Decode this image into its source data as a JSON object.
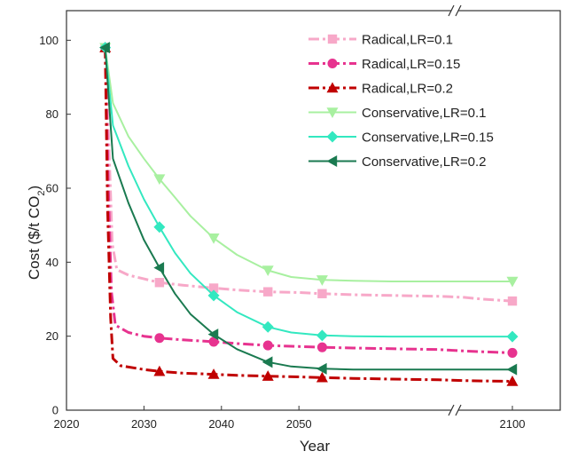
{
  "chart_data": {
    "type": "line",
    "title": "",
    "xlabel": "Year",
    "ylabel": "Cost ($/t CO",
    "ylabel_sub": "2",
    "ylabel_end": ")",
    "xlim": [
      2020,
      2103
    ],
    "ylim": [
      0,
      108
    ],
    "axis_break_x": 2070,
    "x_ticks": [
      2020,
      2030,
      2040,
      2050,
      2100
    ],
    "x_tick_labels": [
      "2020",
      "2030",
      "2040",
      "2050",
      "2100"
    ],
    "y_ticks": [
      0,
      20,
      40,
      60,
      80,
      100
    ],
    "y_tick_labels": [
      "0",
      "20",
      "40",
      "60",
      "80",
      "100"
    ],
    "grid": false,
    "legend_position": "top-right",
    "series": [
      {
        "name": "Radical,LR=0.1",
        "color": "#f7a8c8",
        "dash": "dashdot",
        "marker": "square",
        "line_x": [
          2025,
          2025.5,
          2025.9,
          2026.5,
          2028,
          2030,
          2032,
          2035,
          2039,
          2042,
          2046,
          2050,
          2053,
          2057,
          2062,
          2068,
          2075,
          2085,
          2100
        ],
        "line_y": [
          98,
          70,
          45,
          38,
          36.5,
          35.5,
          34.5,
          33.8,
          33,
          32.5,
          32,
          31.8,
          31.5,
          31.2,
          31,
          30.8,
          30.5,
          30,
          29.5
        ],
        "marker_x": [
          2025,
          2032,
          2039,
          2046,
          2053,
          2100
        ],
        "marker_y": [
          98,
          34.5,
          33,
          32,
          31.5,
          29.5
        ]
      },
      {
        "name": "Radical,LR=0.15",
        "color": "#e7338f",
        "dash": "dashdot",
        "marker": "circle",
        "line_x": [
          2025,
          2025.4,
          2025.8,
          2026.3,
          2028,
          2030,
          2032,
          2035,
          2039,
          2042,
          2046,
          2050,
          2053,
          2057,
          2062,
          2068,
          2075,
          2085,
          2100
        ],
        "line_y": [
          98,
          60,
          32,
          23,
          21,
          20,
          19.5,
          19,
          18.5,
          18,
          17.5,
          17.2,
          17,
          16.8,
          16.6,
          16.4,
          16,
          15.8,
          15.5
        ],
        "marker_x": [
          2025,
          2032,
          2039,
          2046,
          2053,
          2100
        ],
        "marker_y": [
          98,
          19.5,
          18.5,
          17.5,
          17,
          15.5
        ]
      },
      {
        "name": "Radical,LR=0.2",
        "color": "#c00000",
        "dash": "dashdot",
        "marker": "triangle-up",
        "line_x": [
          2025,
          2025.3,
          2025.7,
          2026,
          2027,
          2030,
          2032,
          2035,
          2039,
          2042,
          2046,
          2050,
          2053,
          2057,
          2062,
          2068,
          2075,
          2085,
          2100
        ],
        "line_y": [
          98,
          55,
          25,
          14,
          12,
          11,
          10.5,
          10,
          9.7,
          9.4,
          9.2,
          9,
          8.8,
          8.6,
          8.4,
          8.2,
          8,
          7.9,
          7.8
        ],
        "marker_x": [
          2025,
          2032,
          2039,
          2046,
          2053,
          2100
        ],
        "marker_y": [
          98,
          10.5,
          9.7,
          9.2,
          8.8,
          7.8
        ]
      },
      {
        "name": "Conservative,LR=0.1",
        "color": "#a8f0a0",
        "dash": "solid",
        "marker": "triangle-down",
        "line_x": [
          2025,
          2026,
          2028,
          2030,
          2032,
          2034,
          2036,
          2039,
          2042,
          2046,
          2049,
          2053,
          2057,
          2062,
          2068,
          2075,
          2085,
          2100
        ],
        "line_y": [
          98,
          83,
          74,
          68,
          62.5,
          57.5,
          52.5,
          46.5,
          42,
          37.8,
          36,
          35.2,
          35,
          34.8,
          34.8,
          34.8,
          34.8,
          34.8
        ],
        "marker_x": [
          2025,
          2032,
          2039,
          2046,
          2053,
          2100
        ],
        "marker_y": [
          98,
          62.5,
          46.5,
          37.8,
          35.2,
          34.8
        ]
      },
      {
        "name": "Conservative,LR=0.15",
        "color": "#33e8c0",
        "dash": "solid",
        "marker": "diamond",
        "line_x": [
          2025,
          2026,
          2028,
          2030,
          2032,
          2034,
          2036,
          2039,
          2042,
          2046,
          2049,
          2053,
          2057,
          2062,
          2068,
          2075,
          2085,
          2100
        ],
        "line_y": [
          98,
          77,
          66,
          57,
          49.5,
          42.5,
          37,
          31,
          26.5,
          22.5,
          21,
          20.2,
          20,
          19.9,
          19.9,
          19.9,
          19.9,
          19.9
        ],
        "marker_x": [
          2025,
          2032,
          2039,
          2046,
          2053,
          2100
        ],
        "marker_y": [
          98,
          49.5,
          31,
          22.5,
          20.2,
          19.9
        ]
      },
      {
        "name": "Conservative,LR=0.2",
        "color": "#1a7a50",
        "dash": "solid",
        "marker": "triangle-left",
        "line_x": [
          2025,
          2026,
          2028,
          2030,
          2032,
          2034,
          2036,
          2039,
          2042,
          2046,
          2049,
          2053,
          2057,
          2062,
          2068,
          2075,
          2085,
          2100
        ],
        "line_y": [
          98,
          68,
          56,
          46,
          38.5,
          31.5,
          26,
          20.5,
          16.5,
          13,
          11.8,
          11.2,
          11,
          11,
          11,
          11,
          11,
          11
        ],
        "marker_x": [
          2025,
          2032,
          2039,
          2046,
          2053,
          2100
        ],
        "marker_y": [
          98,
          38.5,
          20.5,
          13,
          11.2,
          11
        ]
      }
    ]
  }
}
